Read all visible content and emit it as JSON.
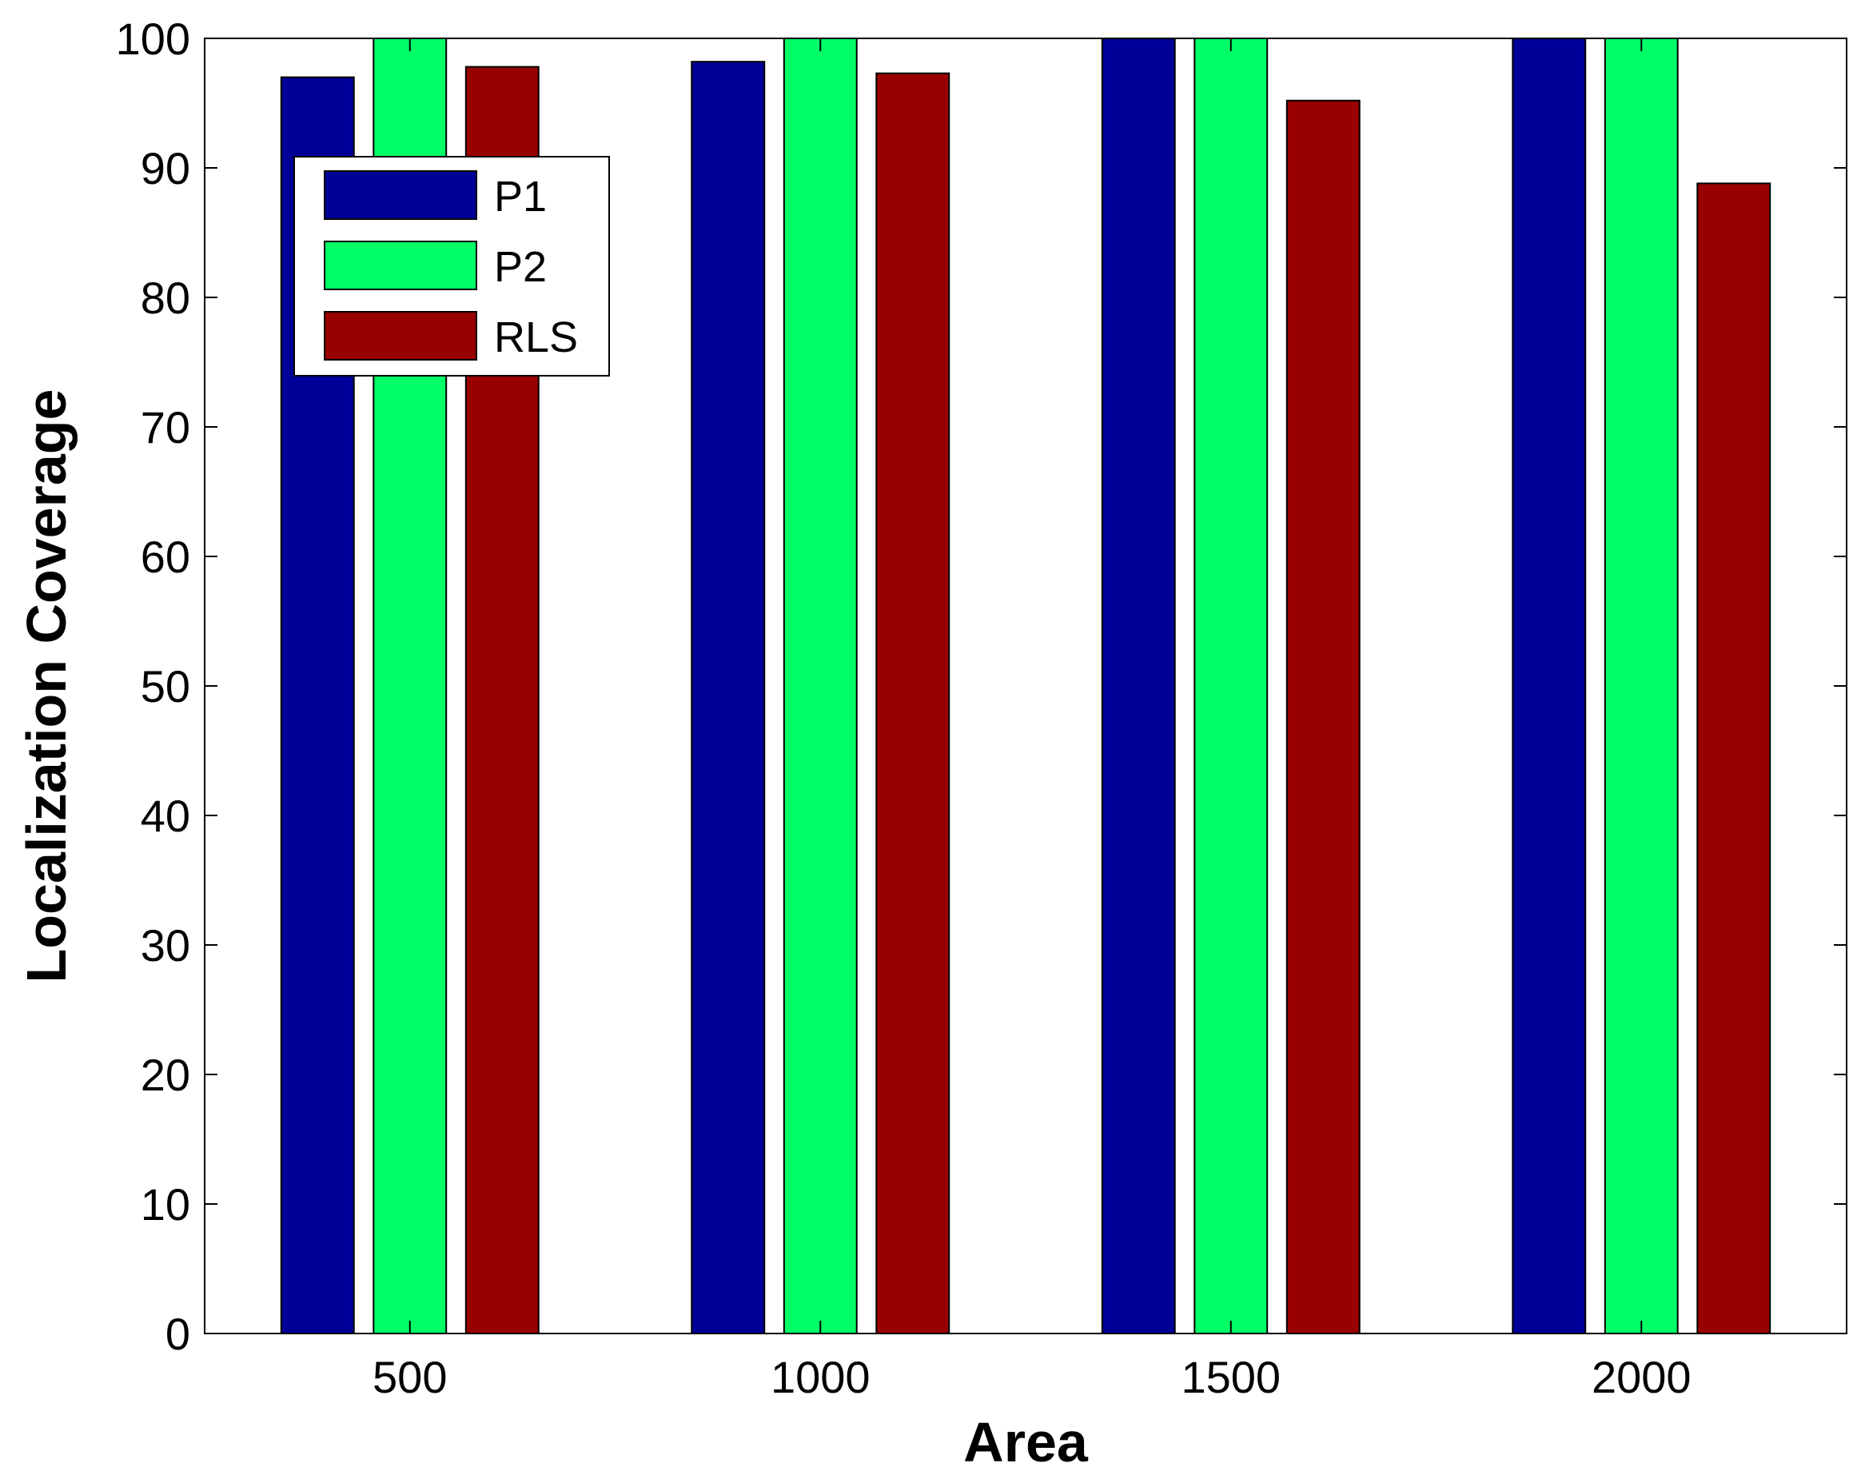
{
  "chart_data": {
    "type": "bar",
    "title": "",
    "xlabel": "Area",
    "ylabel": "Localization Coverage",
    "categories": [
      "500",
      "1000",
      "1500",
      "2000"
    ],
    "yticks": [
      "0",
      "10",
      "20",
      "30",
      "40",
      "50",
      "60",
      "70",
      "80",
      "90",
      "100"
    ],
    "ylim": [
      0,
      100
    ],
    "grid": false,
    "legend_position": "upper-left",
    "series": [
      {
        "name": "P1",
        "color": "#000099",
        "values": [
          97,
          98.2,
          100,
          100
        ]
      },
      {
        "name": "P2",
        "color": "#00FF66",
        "values": [
          100,
          100,
          100,
          100
        ]
      },
      {
        "name": "RLS",
        "color": "#990000",
        "values": [
          97.8,
          97.3,
          95.2,
          88.8
        ]
      }
    ]
  }
}
